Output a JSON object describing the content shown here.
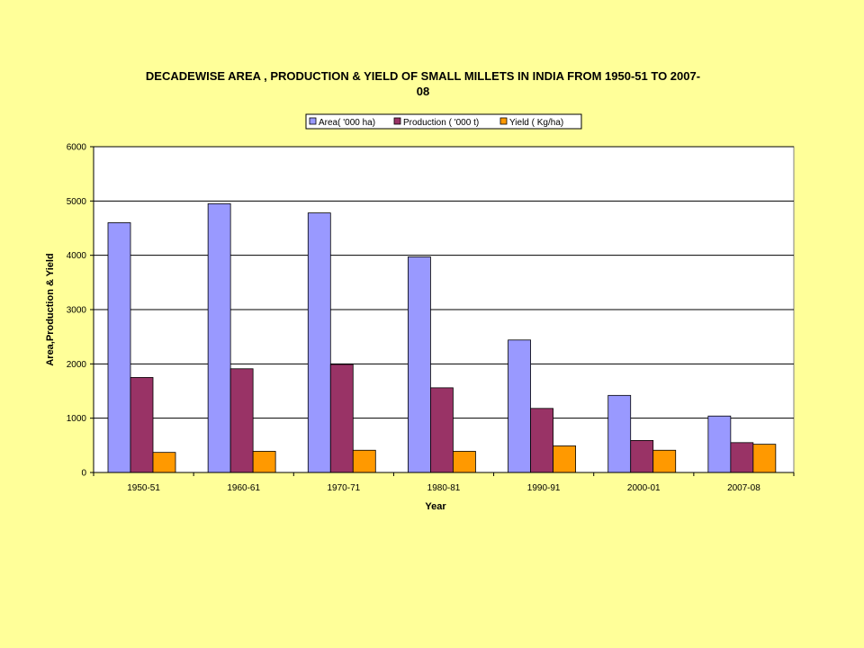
{
  "chart_data": {
    "type": "bar",
    "title": "DECADEWISE AREA , PRODUCTION & YIELD OF SMALL MILLETS IN INDIA FROM 1950-51 TO 2007-08",
    "title_lines": [
      "DECADEWISE AREA , PRODUCTION & YIELD OF SMALL MILLETS IN INDIA FROM 1950-51 TO 2007-",
      "08"
    ],
    "xlabel": "Year",
    "ylabel": "Area,Production & Yield",
    "ylim": [
      0,
      6000
    ],
    "yticks": [
      0,
      1000,
      2000,
      3000,
      4000,
      5000,
      6000
    ],
    "grid": true,
    "legend_position": "top",
    "categories": [
      "1950-51",
      "1960-61",
      "1970-71",
      "1980-81",
      "1990-91",
      "2000-01",
      "2007-08"
    ],
    "series": [
      {
        "name": "Area( '000 ha)",
        "color": "#9999FF",
        "values": [
          4600,
          4950,
          4780,
          3970,
          2440,
          1420,
          1040
        ]
      },
      {
        "name": "Production ( '000 t)",
        "color": "#993366",
        "values": [
          1750,
          1910,
          1990,
          1560,
          1180,
          590,
          550
        ]
      },
      {
        "name": "Yield ( Kg/ha)",
        "color": "#FF9900",
        "values": [
          370,
          390,
          410,
          390,
          490,
          410,
          520
        ]
      }
    ]
  }
}
